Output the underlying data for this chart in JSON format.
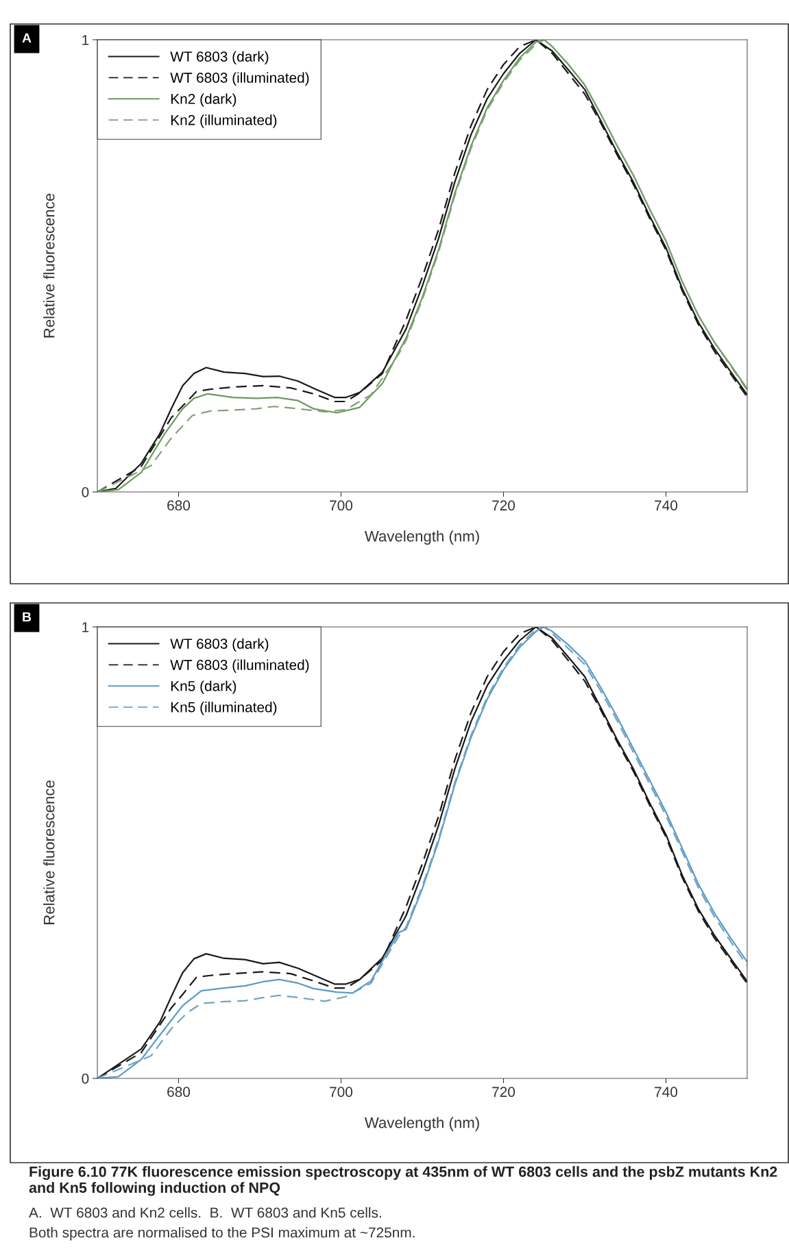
{
  "chart_data": [
    {
      "type": "line",
      "xlabel": "Wavelength (nm)",
      "ylabel": "Relative fluorescence",
      "xlim": [
        670,
        750
      ],
      "ylim": [
        0,
        1
      ],
      "xticks": [
        680,
        700,
        720,
        740
      ],
      "yticks": [
        0,
        1
      ],
      "grid": false,
      "legend": "top left",
      "annotations": [
        "A"
      ],
      "series": [
        {
          "name": "WT 6803 (dark)",
          "color": "#1a1a1a",
          "line_style": "solid",
          "x": [
            670,
            672.3,
            675.4,
            677.7,
            679.1,
            680.5,
            681.9,
            683.4,
            685.6,
            688.2,
            690.4,
            692.4,
            694.7,
            696.9,
            699.2,
            700.6,
            702.3,
            705.1,
            708,
            710,
            712,
            714,
            716,
            718,
            720,
            722,
            724,
            726,
            728,
            730,
            732,
            734,
            736,
            738,
            740,
            742,
            744,
            746,
            748,
            750
          ],
          "values": [
            0,
            0.008,
            0.063,
            0.129,
            0.184,
            0.235,
            0.262,
            0.275,
            0.265,
            0.262,
            0.255,
            0.256,
            0.245,
            0.227,
            0.209,
            0.209,
            0.22,
            0.265,
            0.36,
            0.455,
            0.56,
            0.685,
            0.79,
            0.87,
            0.925,
            0.97,
            1.0,
            0.975,
            0.933,
            0.89,
            0.82,
            0.75,
            0.685,
            0.61,
            0.54,
            0.45,
            0.375,
            0.316,
            0.265,
            0.215
          ]
        },
        {
          "name": "WT 6803 (illuminated)",
          "color": "#1a1a1a",
          "line_style": "dashed",
          "x": [
            670,
            675.4,
            679.1,
            680.5,
            682.2,
            683.9,
            686.7,
            690.4,
            693.8,
            696.6,
            699.2,
            700.6,
            702.3,
            705.1,
            708,
            710,
            712,
            714,
            716,
            718,
            720,
            722,
            724,
            726,
            728,
            730,
            732,
            734,
            736,
            738,
            740,
            742,
            744,
            746,
            748,
            750
          ],
          "values": [
            0,
            0.056,
            0.164,
            0.19,
            0.222,
            0.227,
            0.232,
            0.235,
            0.23,
            0.217,
            0.2,
            0.2,
            0.219,
            0.262,
            0.38,
            0.475,
            0.58,
            0.705,
            0.81,
            0.89,
            0.945,
            0.985,
            1.0,
            0.97,
            0.925,
            0.88,
            0.815,
            0.745,
            0.68,
            0.605,
            0.535,
            0.445,
            0.37,
            0.31,
            0.26,
            0.21
          ]
        },
        {
          "name": "Kn2 (dark)",
          "color": "#6b9a5e",
          "line_style": "solid",
          "x": [
            670,
            672.6,
            675.4,
            678.3,
            680.5,
            681.9,
            683.6,
            686.7,
            689.6,
            692.1,
            694.7,
            696.6,
            699.5,
            702.3,
            705.1,
            707.1,
            708,
            710,
            712,
            714,
            716,
            718,
            720,
            722,
            724,
            725,
            726,
            728,
            730,
            732,
            734,
            736,
            738,
            740,
            742,
            744,
            746,
            748,
            750
          ],
          "values": [
            0,
            0.005,
            0.043,
            0.129,
            0.184,
            0.207,
            0.217,
            0.209,
            0.207,
            0.209,
            0.202,
            0.184,
            0.175,
            0.187,
            0.24,
            0.31,
            0.34,
            0.43,
            0.535,
            0.66,
            0.765,
            0.85,
            0.91,
            0.96,
            0.995,
            1.0,
            0.985,
            0.945,
            0.9,
            0.835,
            0.765,
            0.7,
            0.625,
            0.555,
            0.465,
            0.39,
            0.33,
            0.28,
            0.228
          ]
        },
        {
          "name": "Kn2 (illuminated)",
          "color": "#82a07a",
          "line_style": "dashed",
          "x": [
            670,
            676.6,
            679.1,
            681.7,
            683.9,
            686.7,
            689.6,
            691.8,
            694.7,
            698.0,
            700.6,
            703.7,
            707.1,
            708,
            710,
            712,
            714,
            716,
            718,
            720,
            722,
            724,
            725,
            726,
            728,
            730,
            732,
            734,
            736,
            738,
            740,
            742,
            744,
            746,
            748,
            750
          ],
          "values": [
            0,
            0.058,
            0.119,
            0.169,
            0.179,
            0.181,
            0.184,
            0.189,
            0.184,
            0.177,
            0.182,
            0.215,
            0.305,
            0.335,
            0.425,
            0.53,
            0.655,
            0.76,
            0.845,
            0.905,
            0.955,
            0.99,
            1.0,
            0.985,
            0.945,
            0.9,
            0.835,
            0.765,
            0.7,
            0.625,
            0.555,
            0.465,
            0.39,
            0.33,
            0.278,
            0.225
          ]
        }
      ]
    },
    {
      "type": "line",
      "xlabel": "Wavelength (nm)",
      "ylabel": "Relative fluorescence",
      "xlim": [
        670,
        750
      ],
      "ylim": [
        0,
        1
      ],
      "xticks": [
        680,
        700,
        720,
        740
      ],
      "yticks": [
        0,
        1
      ],
      "grid": false,
      "legend": "top left",
      "annotations": [
        "B",
        "Figure 6.10 77K fluorescence emission spectroscopy at 435nm of WT 6803 cells and the psbZ mutants Kn2 and Kn5 following induction of NPQ",
        "A.  WT 6803 and Kn2 cells.  B.  WT 6803 and Kn5 cells.",
        "Both spectra are normalised to the PSI maximum at ~725nm."
      ],
      "series": [
        {
          "name": "WT 6803 (dark)",
          "color": "#1a1a1a",
          "line_style": "solid",
          "x": [
            670,
            675.4,
            677.7,
            679.1,
            680.5,
            681.9,
            683.4,
            685.6,
            688.2,
            690.4,
            692.4,
            694.7,
            696.9,
            699.2,
            700.6,
            702.3,
            705.1,
            708,
            710,
            712,
            714,
            716,
            718,
            720,
            722,
            724,
            726,
            728,
            730,
            732,
            734,
            736,
            738,
            740,
            742,
            744,
            746,
            748,
            750
          ],
          "values": [
            0,
            0.065,
            0.125,
            0.181,
            0.234,
            0.265,
            0.276,
            0.266,
            0.263,
            0.254,
            0.257,
            0.244,
            0.227,
            0.209,
            0.209,
            0.219,
            0.267,
            0.36,
            0.455,
            0.56,
            0.685,
            0.79,
            0.87,
            0.925,
            0.97,
            1.0,
            0.975,
            0.933,
            0.89,
            0.82,
            0.75,
            0.685,
            0.61,
            0.54,
            0.45,
            0.375,
            0.316,
            0.265,
            0.215
          ]
        },
        {
          "name": "WT 6803 (illuminated)",
          "color": "#1a1a1a",
          "line_style": "dashed",
          "x": [
            670,
            675.4,
            679.1,
            680.5,
            682.2,
            683.9,
            686.7,
            690.4,
            693.8,
            696.6,
            699.2,
            700.6,
            702.3,
            705.1,
            708,
            710,
            712,
            714,
            716,
            718,
            720,
            722,
            724,
            726,
            728,
            730,
            732,
            734,
            736,
            738,
            740,
            742,
            744,
            746,
            748,
            750
          ],
          "values": [
            0,
            0.057,
            0.156,
            0.186,
            0.224,
            0.228,
            0.232,
            0.236,
            0.232,
            0.216,
            0.2,
            0.2,
            0.219,
            0.262,
            0.38,
            0.475,
            0.58,
            0.705,
            0.81,
            0.89,
            0.945,
            0.985,
            1.0,
            0.97,
            0.925,
            0.88,
            0.815,
            0.745,
            0.68,
            0.605,
            0.535,
            0.445,
            0.37,
            0.31,
            0.26,
            0.21
          ]
        },
        {
          "name": "Kn5 (dark)",
          "color": "#5b9bc8",
          "line_style": "solid",
          "x": [
            670,
            672.6,
            675.4,
            678.3,
            680.5,
            682.8,
            685.6,
            688.2,
            690.4,
            692.4,
            694.7,
            696.6,
            699.5,
            701.4,
            703.7,
            707.1,
            708,
            710,
            712,
            714,
            716,
            718,
            720,
            722,
            724,
            725,
            726,
            728,
            730,
            732,
            734,
            736,
            738,
            740,
            742,
            744,
            746,
            748,
            750
          ],
          "values": [
            0,
            0.004,
            0.042,
            0.11,
            0.161,
            0.194,
            0.2,
            0.205,
            0.214,
            0.219,
            0.211,
            0.199,
            0.191,
            0.189,
            0.216,
            0.323,
            0.33,
            0.42,
            0.525,
            0.65,
            0.755,
            0.84,
            0.905,
            0.955,
            0.99,
            1.0,
            0.99,
            0.96,
            0.925,
            0.865,
            0.8,
            0.73,
            0.66,
            0.59,
            0.51,
            0.43,
            0.365,
            0.31,
            0.258
          ]
        },
        {
          "name": "Kn5 (illuminated)",
          "color": "#72a3c4",
          "line_style": "dashed",
          "x": [
            670,
            676.6,
            679.1,
            681.1,
            682.8,
            685.6,
            688.2,
            690.4,
            692.4,
            694.7,
            698.0,
            700.6,
            703.7,
            707.1,
            708,
            710,
            712,
            714,
            716,
            718,
            720,
            722,
            724,
            725,
            726,
            728,
            730,
            732,
            734,
            736,
            738,
            740,
            742,
            744,
            746,
            748,
            750
          ],
          "values": [
            0,
            0.05,
            0.11,
            0.146,
            0.166,
            0.17,
            0.172,
            0.179,
            0.184,
            0.179,
            0.171,
            0.181,
            0.211,
            0.315,
            0.335,
            0.425,
            0.53,
            0.655,
            0.76,
            0.845,
            0.91,
            0.96,
            0.995,
            1.0,
            0.985,
            0.952,
            0.917,
            0.857,
            0.792,
            0.722,
            0.652,
            0.582,
            0.502,
            0.422,
            0.357,
            0.302,
            0.25
          ]
        }
      ]
    }
  ]
}
